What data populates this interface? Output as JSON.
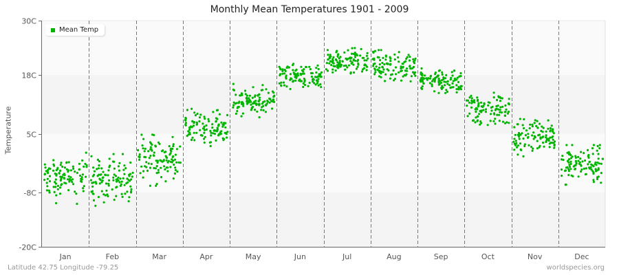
{
  "title": "Monthly Mean Temperatures 1901 - 2009",
  "footer": {
    "location": "Latitude 42.75 Longitude -79.25",
    "source": "worldspecies.org"
  },
  "legend": {
    "label": "Mean Temp",
    "color": "#00b400"
  },
  "chart_data": {
    "type": "scatter",
    "title": "Monthly Mean Temperatures 1901 - 2009",
    "xlabel": "",
    "ylabel": "Temperature",
    "ylim": [
      -20,
      30
    ],
    "yticks": [
      30,
      18,
      5,
      -8,
      -20
    ],
    "ytick_labels": [
      "30C",
      "18C",
      "5C",
      "-8C",
      "-20C"
    ],
    "categories": [
      "Jan",
      "Feb",
      "Mar",
      "Apr",
      "May",
      "Jun",
      "Jul",
      "Aug",
      "Sep",
      "Oct",
      "Nov",
      "Dec"
    ],
    "series": [
      {
        "name": "Mean Temp",
        "color": "#00b400",
        "years": "1901-2009",
        "points_per_month": 109,
        "monthly_center": [
          -4.7,
          -5.3,
          -0.4,
          6.4,
          11.8,
          17.8,
          20.9,
          20.1,
          16.6,
          10.5,
          4.5,
          -1.6
        ],
        "monthly_min": [
          -10.5,
          -12.0,
          -6.5,
          1.5,
          8.0,
          14.5,
          17.5,
          16.5,
          13.5,
          5.5,
          0.0,
          -8.0
        ],
        "monthly_max": [
          1.5,
          0.5,
          6.0,
          10.5,
          16.0,
          21.5,
          24.0,
          23.5,
          20.0,
          15.0,
          8.5,
          2.5
        ]
      }
    ],
    "grid": {
      "vertical_month_dividers": true,
      "horizontal_bands": true
    },
    "legend_position": "top-left"
  }
}
